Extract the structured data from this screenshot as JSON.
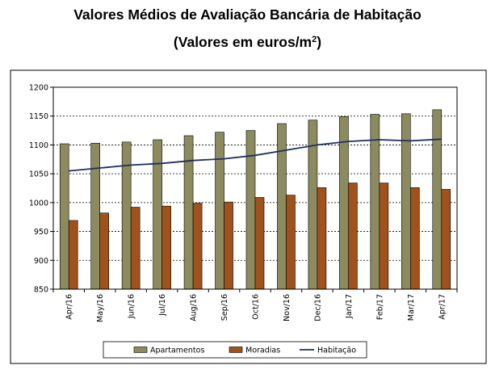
{
  "title": "Valores Médios de Avaliação Bancária de Habitação",
  "subtitle_main": "(Valores em euros/m",
  "subtitle_sup": "2",
  "subtitle_end": ")",
  "colors": {
    "apartamentos": "#8b8b5f",
    "moradias": "#a0521d",
    "habitacao": "#1f2f5f",
    "grid": "#000000",
    "plot_background": "#ffffff",
    "frame": "#000000"
  },
  "chart_data": {
    "type": "bar",
    "categories": [
      "Apr/16",
      "May/16",
      "Jun/16",
      "Jul/16",
      "Aug/16",
      "Sep/16",
      "Oct/16",
      "Nov/16",
      "Dec/16",
      "Jan/17",
      "Feb/17",
      "Mar/17",
      "Apr/17"
    ],
    "series": [
      {
        "name": "Apartamentos",
        "type": "bar",
        "values": [
          1102,
          1103,
          1105,
          1109,
          1116,
          1122,
          1125,
          1137,
          1143,
          1149,
          1153,
          1154,
          1161
        ]
      },
      {
        "name": "Moradias",
        "type": "bar",
        "values": [
          969,
          982,
          992,
          994,
          999,
          1001,
          1009,
          1013,
          1026,
          1034,
          1034,
          1026,
          1023
        ]
      },
      {
        "name": "Habitação",
        "type": "line",
        "values": [
          1055,
          1060,
          1065,
          1068,
          1073,
          1076,
          1082,
          1091,
          1100,
          1106,
          1109,
          1107,
          1110
        ]
      }
    ],
    "ylim": [
      850,
      1200
    ],
    "yticks": [
      850,
      900,
      950,
      1000,
      1050,
      1100,
      1150,
      1200
    ],
    "grid": "horizontal dashed",
    "legend_placement": "bottom"
  }
}
